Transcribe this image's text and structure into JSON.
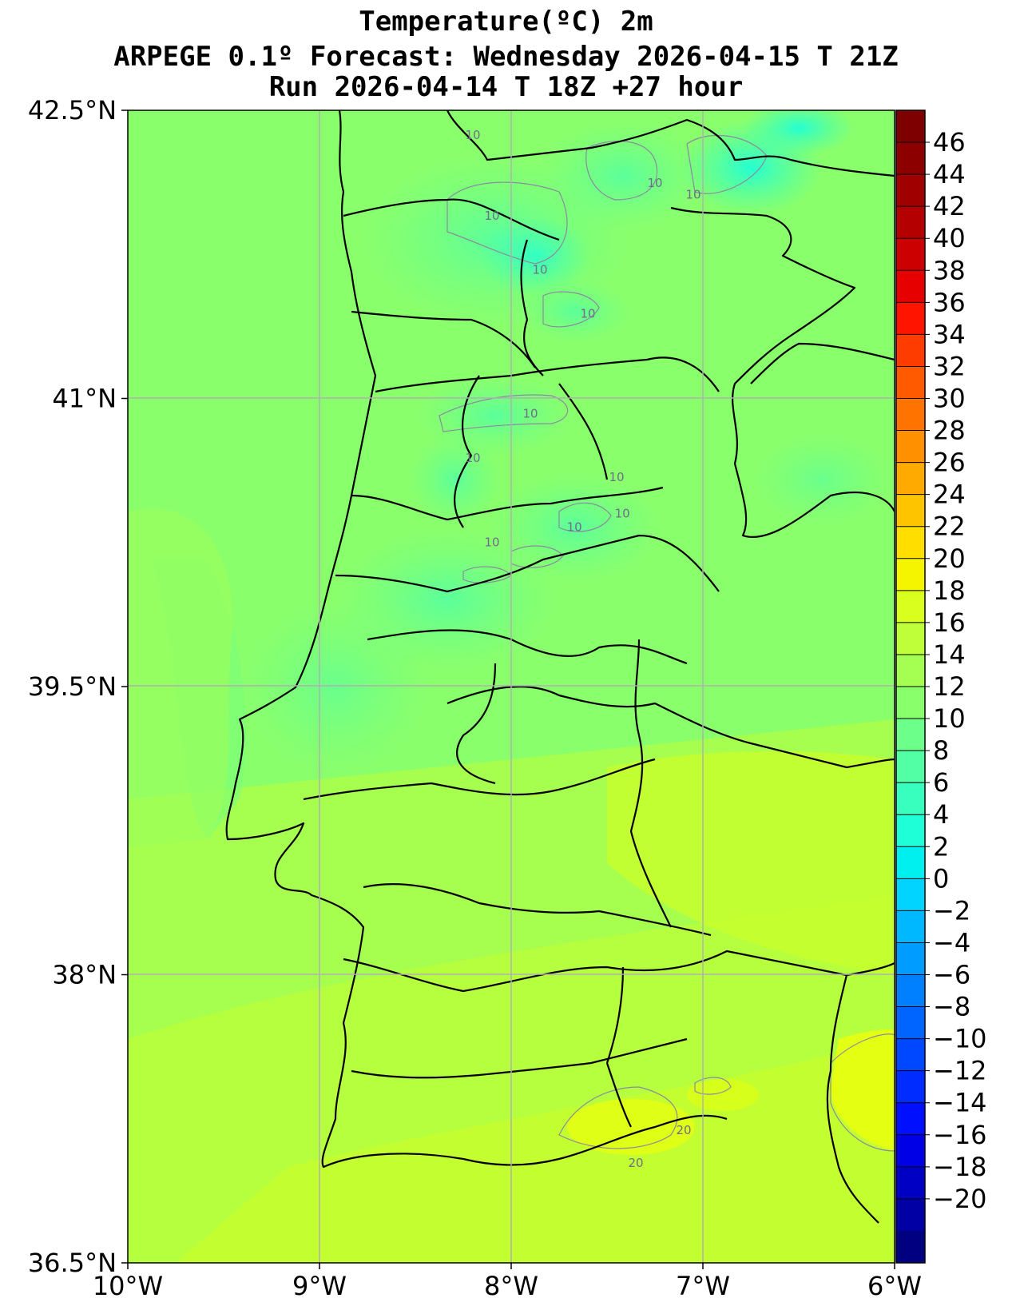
{
  "titles": {
    "line1": "Temperature(ºC) 2m",
    "line2": "ARPEGE 0.1º Forecast: Wednesday 2026-04-15 T 21Z",
    "line3": "Run 2026-04-14 T 18Z +27 hour"
  },
  "map": {
    "lon_range": [
      -10,
      -6
    ],
    "lat_range": [
      36.5,
      42.5
    ],
    "x_ticks": [
      {
        "lon": -10,
        "label": "10°W"
      },
      {
        "lon": -9,
        "label": "9°W"
      },
      {
        "lon": -8,
        "label": "8°W"
      },
      {
        "lon": -7,
        "label": "7°W"
      },
      {
        "lon": -6,
        "label": "6°W"
      }
    ],
    "y_ticks": [
      {
        "lat": 42.5,
        "label": "42.5°N"
      },
      {
        "lat": 41,
        "label": "41°N"
      },
      {
        "lat": 39.5,
        "label": "39.5°N"
      },
      {
        "lat": 38,
        "label": "38°N"
      },
      {
        "lat": 36.5,
        "label": "36.5°N"
      }
    ],
    "gridlines": true,
    "contour_labels": [
      {
        "text": "10",
        "lon": -8.2,
        "lat": 42.35
      },
      {
        "text": "10",
        "lon": -7.25,
        "lat": 42.1
      },
      {
        "text": "10",
        "lon": -7.05,
        "lat": 42.04
      },
      {
        "text": "10",
        "lon": -8.1,
        "lat": 41.93
      },
      {
        "text": "10",
        "lon": -7.85,
        "lat": 41.65
      },
      {
        "text": "10",
        "lon": -7.6,
        "lat": 41.42
      },
      {
        "text": "10",
        "lon": -7.9,
        "lat": 40.9
      },
      {
        "text": "10",
        "lon": -8.2,
        "lat": 40.67
      },
      {
        "text": "10",
        "lon": -7.45,
        "lat": 40.57
      },
      {
        "text": "10",
        "lon": -7.42,
        "lat": 40.38
      },
      {
        "text": "10",
        "lon": -7.67,
        "lat": 40.31
      },
      {
        "text": "10",
        "lon": -8.1,
        "lat": 40.23
      },
      {
        "text": "20",
        "lon": -7.1,
        "lat": 37.17
      },
      {
        "text": "20",
        "lon": -7.35,
        "lat": 37.0
      }
    ]
  },
  "colorbar": {
    "ticks": [
      "46",
      "44",
      "42",
      "40",
      "38",
      "36",
      "34",
      "32",
      "30",
      "28",
      "26",
      "24",
      "22",
      "20",
      "18",
      "16",
      "14",
      "12",
      "10",
      "8",
      "6",
      "4",
      "2",
      "0",
      "−2",
      "−4",
      "−6",
      "−8",
      "−10",
      "−12",
      "−14",
      "−16",
      "−18",
      "−20"
    ],
    "colors_top_to_bottom": [
      "#7f0000",
      "#8d0000",
      "#a00000",
      "#b40000",
      "#cc0000",
      "#e60000",
      "#ff1400",
      "#ff3c00",
      "#ff5a00",
      "#ff7400",
      "#ff9000",
      "#ffaa00",
      "#ffc400",
      "#ffde00",
      "#f5f500",
      "#d8ff1e",
      "#beff39",
      "#a4ff52",
      "#8aff6c",
      "#6cff8a",
      "#52ffa4",
      "#39ffbe",
      "#1effd8",
      "#00f0f0",
      "#00d4ff",
      "#00b8ff",
      "#009cff",
      "#0080ff",
      "#0064ff",
      "#0048ff",
      "#002cff",
      "#0010ff",
      "#0000e6",
      "#0000c4",
      "#0000a4",
      "#000080"
    ]
  }
}
